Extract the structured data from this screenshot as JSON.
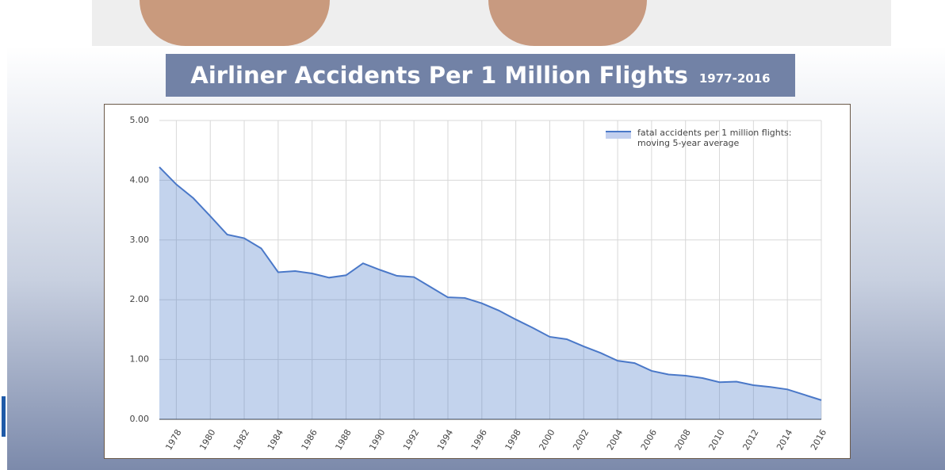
{
  "chart_data": {
    "type": "area",
    "title": "Airliner Accidents Per 1 Million Flights",
    "subtitle": "1977-2016",
    "x": [
      1977,
      1978,
      1979,
      1980,
      1981,
      1982,
      1983,
      1984,
      1985,
      1986,
      1987,
      1988,
      1989,
      1990,
      1991,
      1992,
      1993,
      1994,
      1995,
      1996,
      1997,
      1998,
      1999,
      2000,
      2001,
      2002,
      2003,
      2004,
      2005,
      2006,
      2007,
      2008,
      2009,
      2010,
      2011,
      2012,
      2013,
      2014,
      2015,
      2016
    ],
    "series": [
      {
        "name": "fatal accidents per 1 million flights: moving 5-year average",
        "color": "#4a78c8",
        "values": [
          4.22,
          3.93,
          3.7,
          3.4,
          3.09,
          3.03,
          2.86,
          2.46,
          2.48,
          2.44,
          2.37,
          2.41,
          2.61,
          2.5,
          2.4,
          2.38,
          2.21,
          2.04,
          2.03,
          1.94,
          1.82,
          1.67,
          1.53,
          1.38,
          1.34,
          1.22,
          1.11,
          0.98,
          0.94,
          0.81,
          0.75,
          0.73,
          0.69,
          0.62,
          0.63,
          0.57,
          0.54,
          0.5,
          0.41,
          0.32
        ]
      }
    ],
    "xlim": [
      1977,
      2016
    ],
    "xticks": [
      1978,
      1980,
      1982,
      1984,
      1986,
      1988,
      1990,
      1992,
      1994,
      1996,
      1998,
      2000,
      2002,
      2004,
      2006,
      2008,
      2010,
      2012,
      2014,
      2016
    ],
    "ylim": [
      0,
      5
    ],
    "yticks": [
      {
        "value": 0,
        "label": "0.00"
      },
      {
        "value": 1,
        "label": "1.00"
      },
      {
        "value": 2,
        "label": "2.00"
      },
      {
        "value": 3,
        "label": "3.00"
      },
      {
        "value": 4,
        "label": "4.00"
      },
      {
        "value": 5,
        "label": "5.00"
      }
    ],
    "grid": true,
    "legend": "top-right"
  }
}
